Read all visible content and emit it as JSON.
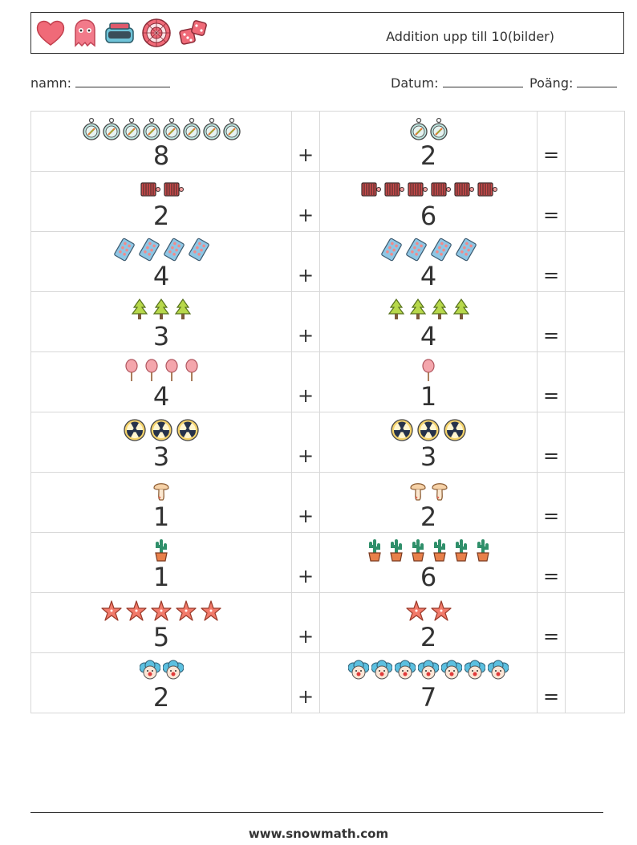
{
  "header": {
    "title": "Addition upp till 10(bilder)",
    "icons": [
      "heart-icon",
      "ghost-icon",
      "vr-headset-icon",
      "dartboard-icon",
      "dice-icon"
    ]
  },
  "meta": {
    "name_label": "namn:",
    "date_label": "Datum:",
    "score_label": "Poäng:"
  },
  "operators": {
    "plus": "+",
    "equals": "="
  },
  "problems": [
    {
      "a": "8",
      "b": "2",
      "icon": "compass-icon"
    },
    {
      "a": "2",
      "b": "6",
      "icon": "harmonica-icon"
    },
    {
      "a": "4",
      "b": "4",
      "icon": "pill-pack-icon"
    },
    {
      "a": "3",
      "b": "4",
      "icon": "tree-icon"
    },
    {
      "a": "4",
      "b": "1",
      "icon": "cotton-candy-icon"
    },
    {
      "a": "3",
      "b": "3",
      "icon": "radiation-icon"
    },
    {
      "a": "1",
      "b": "2",
      "icon": "mushroom-icon"
    },
    {
      "a": "1",
      "b": "6",
      "icon": "cactus-icon"
    },
    {
      "a": "5",
      "b": "2",
      "icon": "starfish-icon"
    },
    {
      "a": "2",
      "b": "7",
      "icon": "clown-icon"
    }
  ],
  "footer": {
    "url": "www.snowmath.com"
  }
}
